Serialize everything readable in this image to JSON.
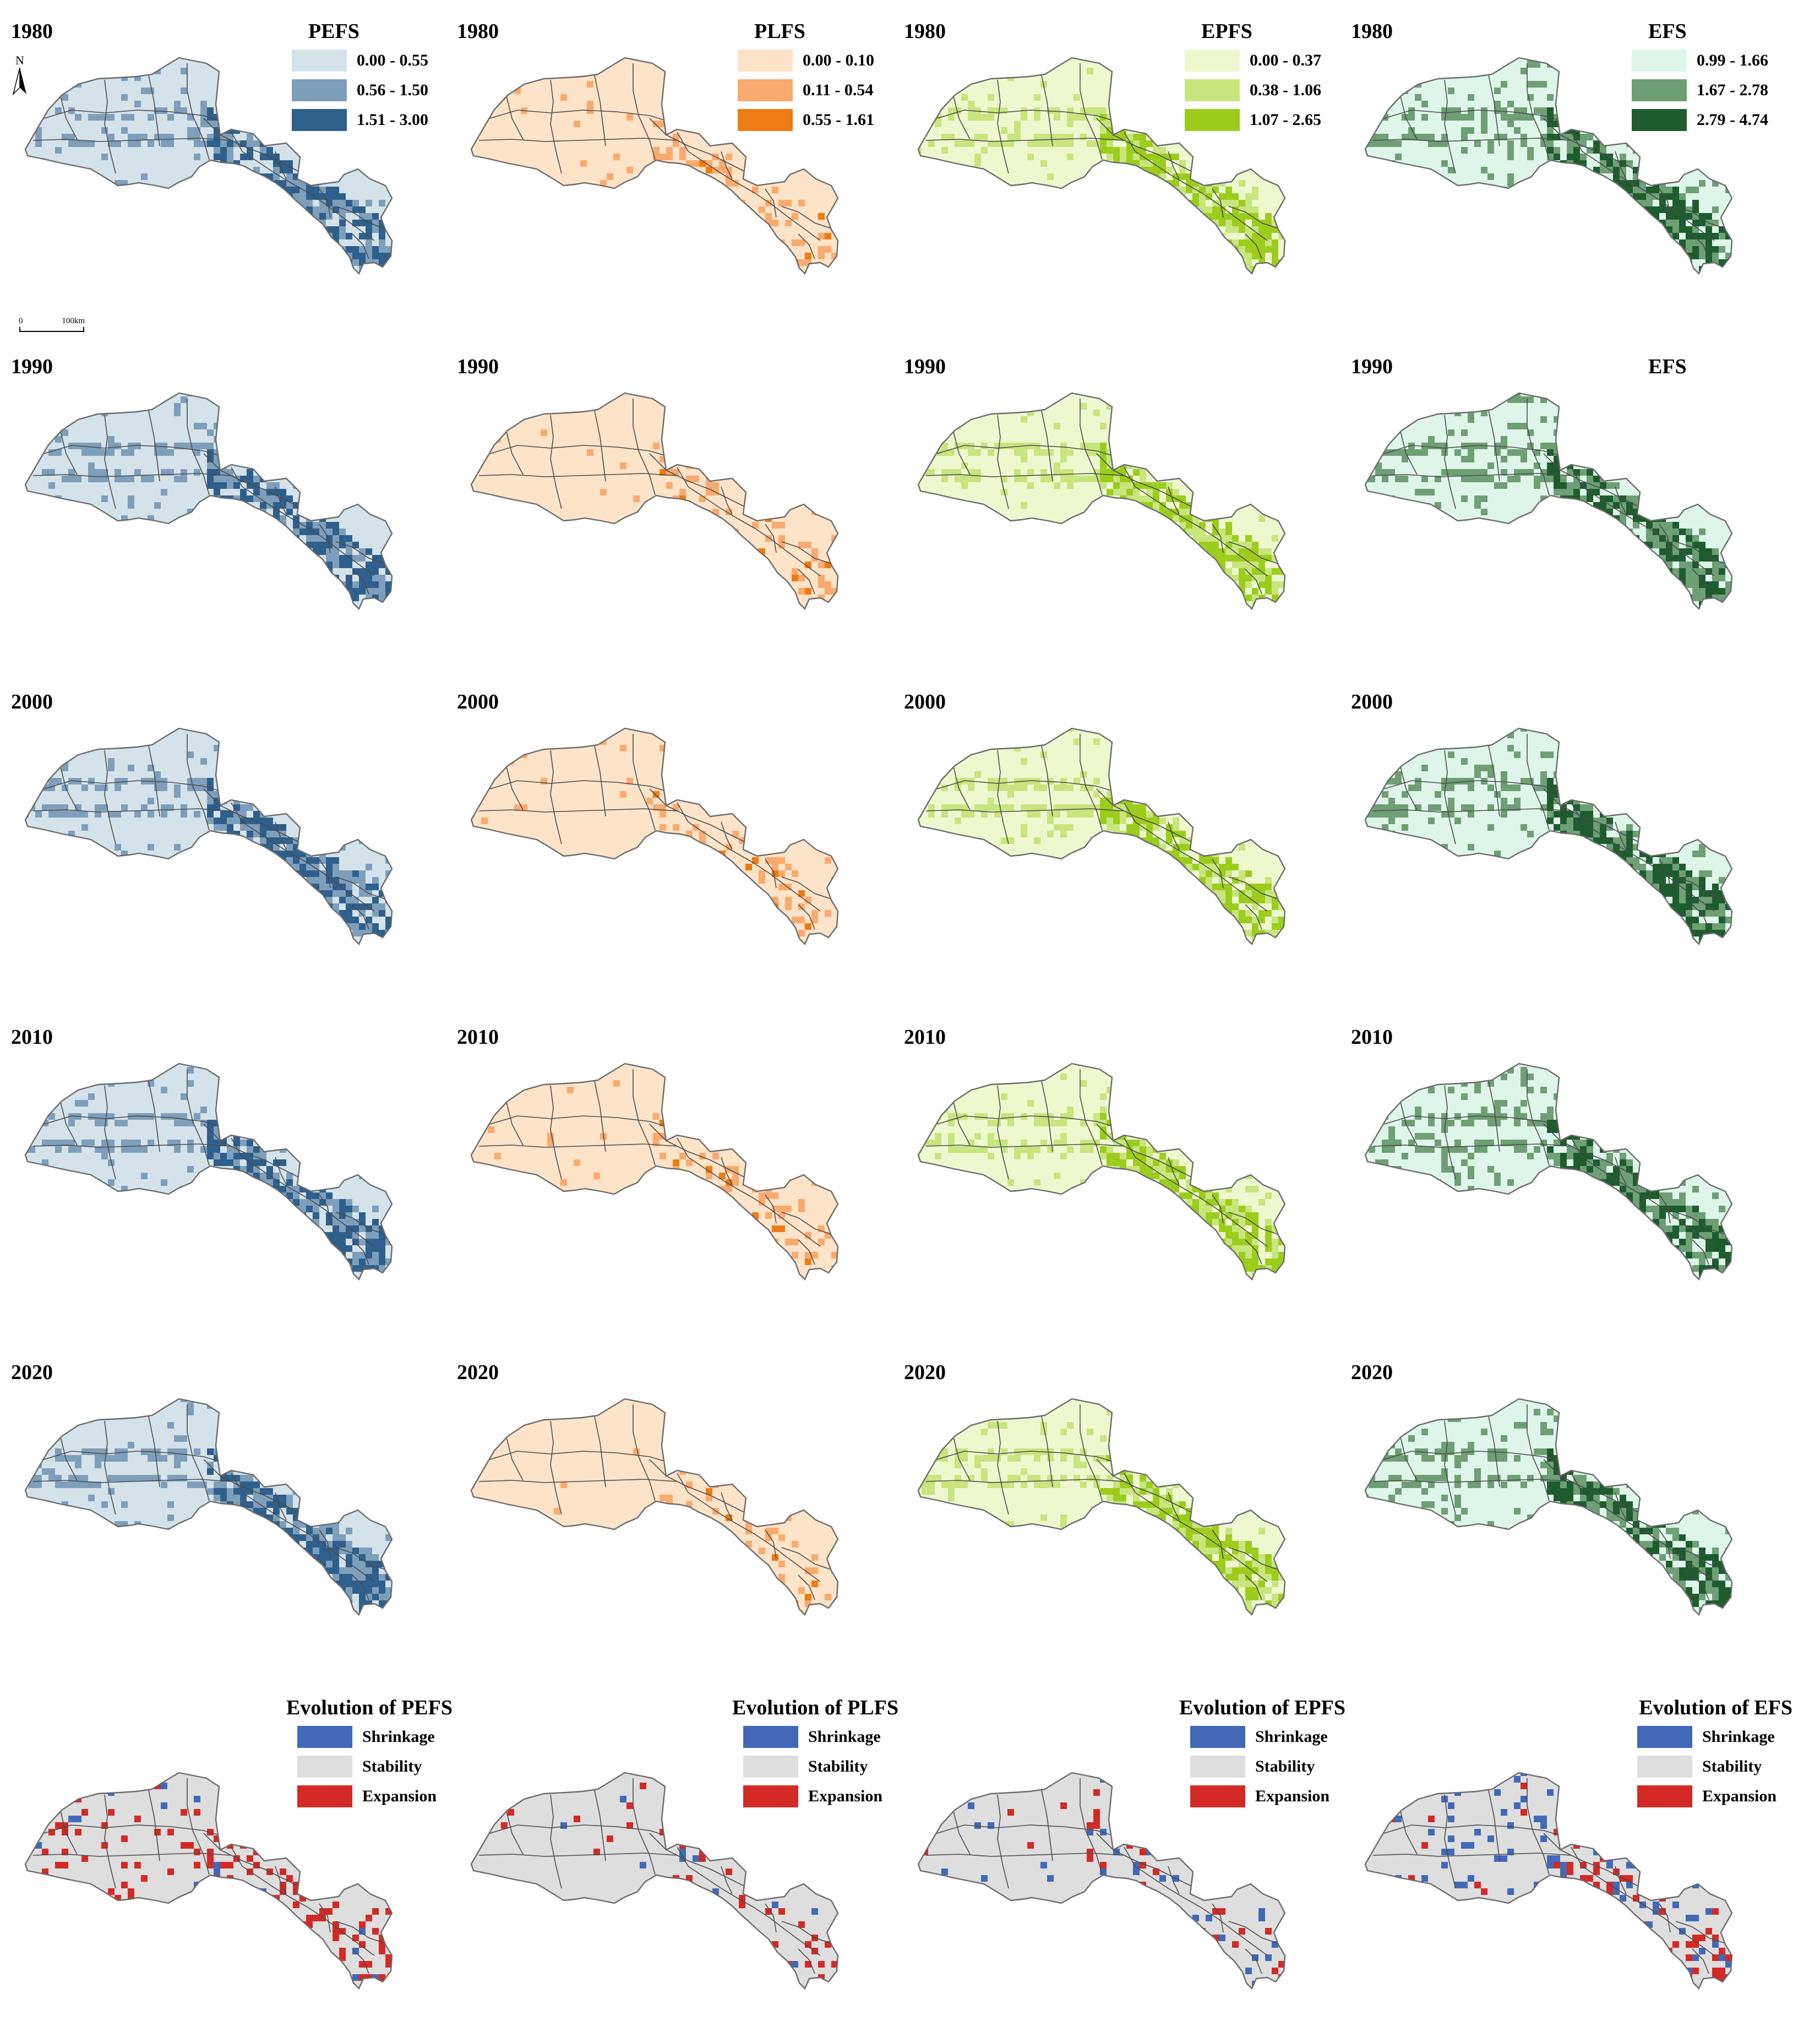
{
  "colors": {
    "PEFS": [
      "#d4e3ea",
      "#7e9fbb",
      "#2f5f8b"
    ],
    "PLFS": [
      "#fde3c8",
      "#f9aa6e",
      "#ee7c12"
    ],
    "EPFS": [
      "#eef8cf",
      "#c8e57e",
      "#9ccd1c"
    ],
    "EFS": [
      "#def5ea",
      "#6e9f75",
      "#1e5c2e"
    ],
    "evolution": [
      "#4169b8",
      "#dedede",
      "#d32a26"
    ],
    "boundary": "#4a4a4a"
  },
  "map_annotations": {
    "north": "N",
    "scale_zero": "0",
    "scale_label": "100km"
  },
  "years": [
    "1980",
    "1990",
    "2000",
    "2010",
    "2020"
  ],
  "legends": [
    {
      "id": "PEFS",
      "title": "PEFS",
      "ranges": [
        "0.00 - 0.55",
        "0.56 - 1.50",
        "1.51 - 3.00"
      ]
    },
    {
      "id": "PLFS",
      "title": "PLFS",
      "ranges": [
        "0.00 - 0.10",
        "0.11 - 0.54",
        "0.55 - 1.61"
      ]
    },
    {
      "id": "EPFS",
      "title": "EPFS",
      "ranges": [
        "0.00 - 0.37",
        "0.38 - 1.06",
        "1.07 - 2.65"
      ]
    },
    {
      "id": "EFS",
      "title": "EFS",
      "ranges": [
        "0.99 - 1.66",
        "1.67 - 2.78",
        "2.79 - 4.74"
      ]
    }
  ],
  "efs_1990_label": "EFS",
  "evolution": {
    "titles": [
      "Evolution of PEFS",
      "Evolution of PLFS",
      "Evolution of EPFS",
      "Evolution of EFS"
    ],
    "classes": [
      "Shrinkage",
      "Stability",
      "Expansion"
    ]
  }
}
